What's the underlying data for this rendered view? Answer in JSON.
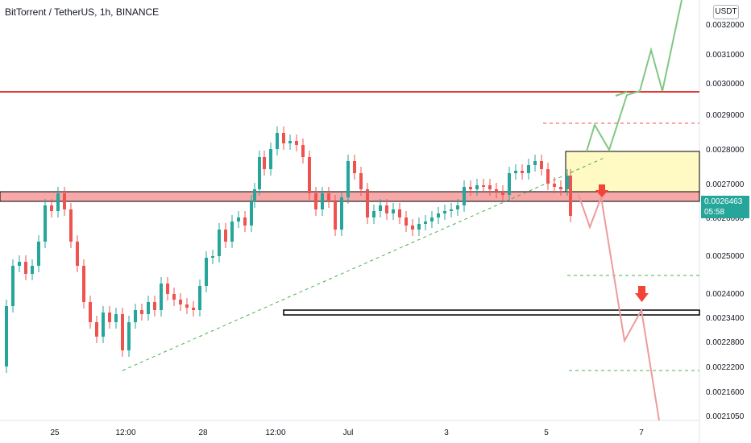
{
  "header": {
    "title": "BitTorrent / TetherUS, 1h, BINANCE",
    "currency": "USDT"
  },
  "last_price": {
    "value": "0.0026463",
    "countdown": "05:58"
  },
  "chart_data": {
    "type": "candlestick",
    "y_axis": {
      "ticks": [
        "0.0032000",
        "0.0031000",
        "0.0030000",
        "0.0029000",
        "0.0028000",
        "0.0027000",
        "0.0026000",
        "0.0025000",
        "0.0024000",
        "0.0023400",
        "0.0022800",
        "0.0022200",
        "0.0021600",
        "0.0021050"
      ]
    },
    "x_axis": {
      "ticks": [
        "25",
        "12:00",
        "28",
        "12:00",
        "Jul",
        "3",
        "5",
        "7"
      ]
    },
    "colors": {
      "up": "#26a69a",
      "down": "#ef5350",
      "resistance": "#e53935",
      "support_zone": "#f7a8a8",
      "box": "#fff59d"
    }
  }
}
